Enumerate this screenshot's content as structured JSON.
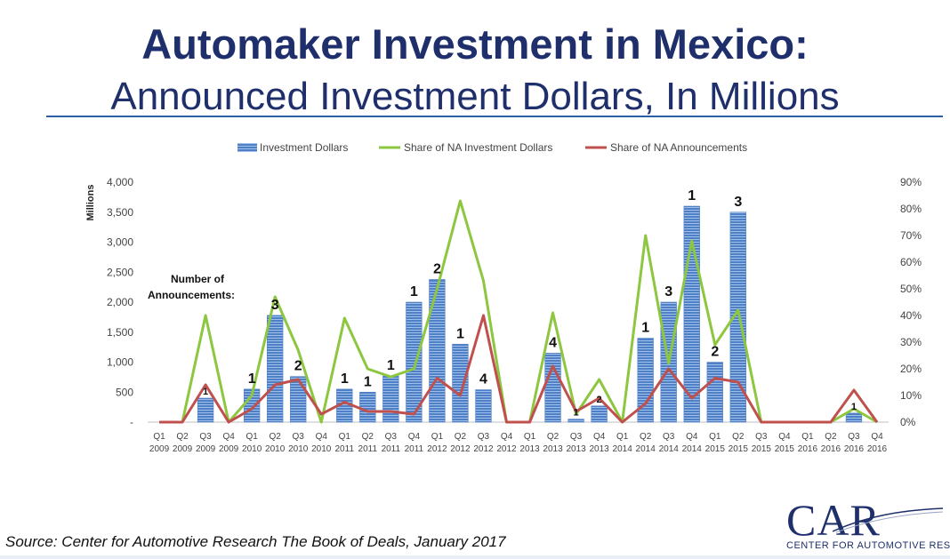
{
  "title": "Automaker Investment in Mexico:",
  "subtitle": "Announced Investment Dollars, In Millions",
  "source": "Source: Center for Automotive Research The Book of Deals, January 2017",
  "logo": {
    "mark": "CAR",
    "text": "CENTER FOR AUTOMOTIVE RESEARCH"
  },
  "colors": {
    "bar": "#4f7fc4",
    "bar_stripe": "#9fc0ea",
    "green": "#8dc63f",
    "red": "#c0504d",
    "title": "#1f2f6b"
  },
  "chart_data": {
    "type": "bar",
    "ylabel": "Millions",
    "ylim": [
      0,
      4000
    ],
    "y_ticks": [
      "-",
      "500",
      "1,000",
      "1,500",
      "2,000",
      "2,500",
      "3,000",
      "3,500",
      "4,000"
    ],
    "y2lim": [
      0,
      90
    ],
    "y2_ticks": [
      "0%",
      "10%",
      "20%",
      "30%",
      "40%",
      "50%",
      "60%",
      "70%",
      "80%",
      "90%"
    ],
    "legend": [
      "Investment Dollars",
      "Share of NA Investment Dollars",
      "Share of NA Announcements"
    ],
    "legend_position": "top",
    "annotation_label": [
      "Number of",
      "Announcements:"
    ],
    "categories": [
      [
        "Q1",
        "2009"
      ],
      [
        "Q2",
        "2009"
      ],
      [
        "Q3",
        "2009"
      ],
      [
        "Q4",
        "2009"
      ],
      [
        "Q1",
        "2010"
      ],
      [
        "Q2",
        "2010"
      ],
      [
        "Q3",
        "2010"
      ],
      [
        "Q4",
        "2010"
      ],
      [
        "Q1",
        "2011"
      ],
      [
        "Q2",
        "2011"
      ],
      [
        "Q3",
        "2011"
      ],
      [
        "Q4",
        "2011"
      ],
      [
        "Q1",
        "2012"
      ],
      [
        "Q2",
        "2012"
      ],
      [
        "Q3",
        "2012"
      ],
      [
        "Q4",
        "2012"
      ],
      [
        "Q1",
        "2013"
      ],
      [
        "Q2",
        "2013"
      ],
      [
        "Q3",
        "2013"
      ],
      [
        "Q4",
        "2013"
      ],
      [
        "Q1",
        "2014"
      ],
      [
        "Q2",
        "2014"
      ],
      [
        "Q3",
        "2014"
      ],
      [
        "Q4",
        "2014"
      ],
      [
        "Q1",
        "2015"
      ],
      [
        "Q2",
        "2015"
      ],
      [
        "Q3",
        "2015"
      ],
      [
        "Q4",
        "2015"
      ],
      [
        "Q1",
        "2016"
      ],
      [
        "Q2",
        "2016"
      ],
      [
        "Q3",
        "2016"
      ],
      [
        "Q4",
        "2016"
      ]
    ],
    "series": [
      {
        "name": "Investment Dollars",
        "axis": "left",
        "values": [
          0,
          0,
          400,
          0,
          550,
          1780,
          760,
          0,
          550,
          500,
          770,
          2000,
          2380,
          1300,
          540,
          0,
          0,
          1150,
          50,
          270,
          0,
          1400,
          2000,
          3600,
          1000,
          3500,
          0,
          0,
          0,
          0,
          150,
          0
        ]
      },
      {
        "name": "Share of NA Investment Dollars",
        "axis": "right",
        "values": [
          0,
          0,
          40,
          0,
          10,
          47,
          27,
          0,
          39,
          20,
          17,
          20,
          50,
          83,
          53,
          0,
          0,
          41,
          3,
          16,
          0,
          70,
          22,
          68,
          29,
          42,
          0,
          0,
          0,
          0,
          5,
          0
        ]
      },
      {
        "name": "Share of NA Announcements",
        "axis": "right",
        "values": [
          0,
          0,
          14,
          0,
          5,
          14,
          16,
          3,
          7.5,
          4,
          4,
          3,
          16.5,
          10,
          40,
          0,
          0,
          21,
          4,
          9,
          0,
          7,
          20,
          9,
          16.5,
          15,
          0,
          0,
          0,
          0,
          12,
          0
        ]
      }
    ],
    "data_labels": [
      "",
      "",
      "1",
      "",
      "1",
      "3",
      "2",
      "",
      "1",
      "1",
      "1",
      "1",
      "2",
      "1",
      "4",
      "",
      "",
      "4",
      "1",
      "2",
      "",
      "1",
      "3",
      "1",
      "2",
      "3",
      "",
      "",
      "",
      "",
      "1",
      ""
    ]
  }
}
